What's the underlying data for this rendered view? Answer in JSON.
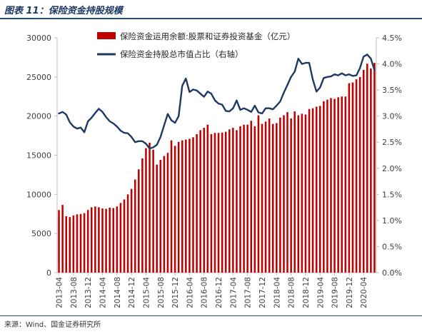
{
  "figure": {
    "title": "图表 11：保险资金持股规模",
    "source": "来源：Wind、国金证券研究所"
  },
  "colors": {
    "bar": "#c00000",
    "line": "#1f3864",
    "axis": "#bfbfbf",
    "text": "#404040",
    "header": "#1f4e8c"
  },
  "chart_data": {
    "type": "bar+line",
    "title": "",
    "legend_position": "top",
    "grid": false,
    "x_tick_labels": [
      "2013-04",
      "2013-08",
      "2013-12",
      "2014-04",
      "2014-08",
      "2014-12",
      "2015-04",
      "2015-08",
      "2015-12",
      "2016-04",
      "2016-08",
      "2016-12",
      "2017-04",
      "2017-08",
      "2017-12",
      "2018-04",
      "2018-08",
      "2018-12",
      "2019-04",
      "2019-08",
      "2019-12",
      "2020-04"
    ],
    "y_left": {
      "min": 0,
      "max": 30000,
      "ticks": [
        "0",
        "5000",
        "10000",
        "15000",
        "20000",
        "25000",
        "30000"
      ]
    },
    "y_right": {
      "min": 0,
      "max": 4.5,
      "ticks": [
        "0.0%",
        "0.5%",
        "1.0%",
        "1.5%",
        "2.0%",
        "2.5%",
        "3.0%",
        "3.5%",
        "4.0%",
        "4.5%"
      ]
    },
    "series": [
      {
        "name": "保险资金运用余额:股票和证券投资基金（亿元）",
        "kind": "bar",
        "axis": "left",
        "values": [
          8000,
          8650,
          7200,
          7100,
          7300,
          7450,
          7500,
          7600,
          8000,
          8350,
          8450,
          8350,
          8200,
          8150,
          8300,
          8250,
          8450,
          8900,
          9350,
          10000,
          10700,
          11900,
          13200,
          14600,
          15900,
          16600,
          15700,
          13800,
          14400,
          14900,
          15300,
          16900,
          16200,
          16700,
          16900,
          17000,
          17100,
          17300,
          17700,
          18200,
          18500,
          18900,
          17700,
          17850,
          17850,
          17900,
          18000,
          18300,
          18500,
          18200,
          18700,
          18900,
          18900,
          19400,
          18700,
          20100,
          19000,
          19300,
          19700,
          19000,
          19100,
          19800,
          20100,
          20500,
          19700,
          20600,
          20100,
          20300,
          20200,
          20900,
          21000,
          21200,
          21300,
          21900,
          22100,
          22300,
          22200,
          22400,
          22500,
          22500,
          24200,
          24300,
          24700,
          25000,
          25900,
          26700,
          26100,
          26800
        ]
      },
      {
        "name": "保险资金持股总市值占比（右轴）",
        "kind": "line",
        "axis": "right",
        "values": [
          3.05,
          3.08,
          3.03,
          2.88,
          2.8,
          2.76,
          2.78,
          2.69,
          2.9,
          2.97,
          3.06,
          3.14,
          3.08,
          2.98,
          2.9,
          2.86,
          2.8,
          2.72,
          2.68,
          2.67,
          2.6,
          2.5,
          2.52,
          2.52,
          2.47,
          2.38,
          2.4,
          2.45,
          2.6,
          2.82,
          3.04,
          2.92,
          2.87,
          3.0,
          3.58,
          3.72,
          3.46,
          3.51,
          3.49,
          3.43,
          3.37,
          3.47,
          3.43,
          3.3,
          3.24,
          3.22,
          3.1,
          3.09,
          3.15,
          3.3,
          3.12,
          3.15,
          3.12,
          3.08,
          3.2,
          3.07,
          3.05,
          3.15,
          3.15,
          3.13,
          3.2,
          3.28,
          3.45,
          3.6,
          3.75,
          3.85,
          4.1,
          4.0,
          4.02,
          4.02,
          3.7,
          3.47,
          3.55,
          3.73,
          3.75,
          3.76,
          3.8,
          3.78,
          3.82,
          3.78,
          3.8,
          3.77,
          3.78,
          3.92,
          4.14,
          4.18,
          4.1,
          3.88
        ]
      }
    ]
  }
}
